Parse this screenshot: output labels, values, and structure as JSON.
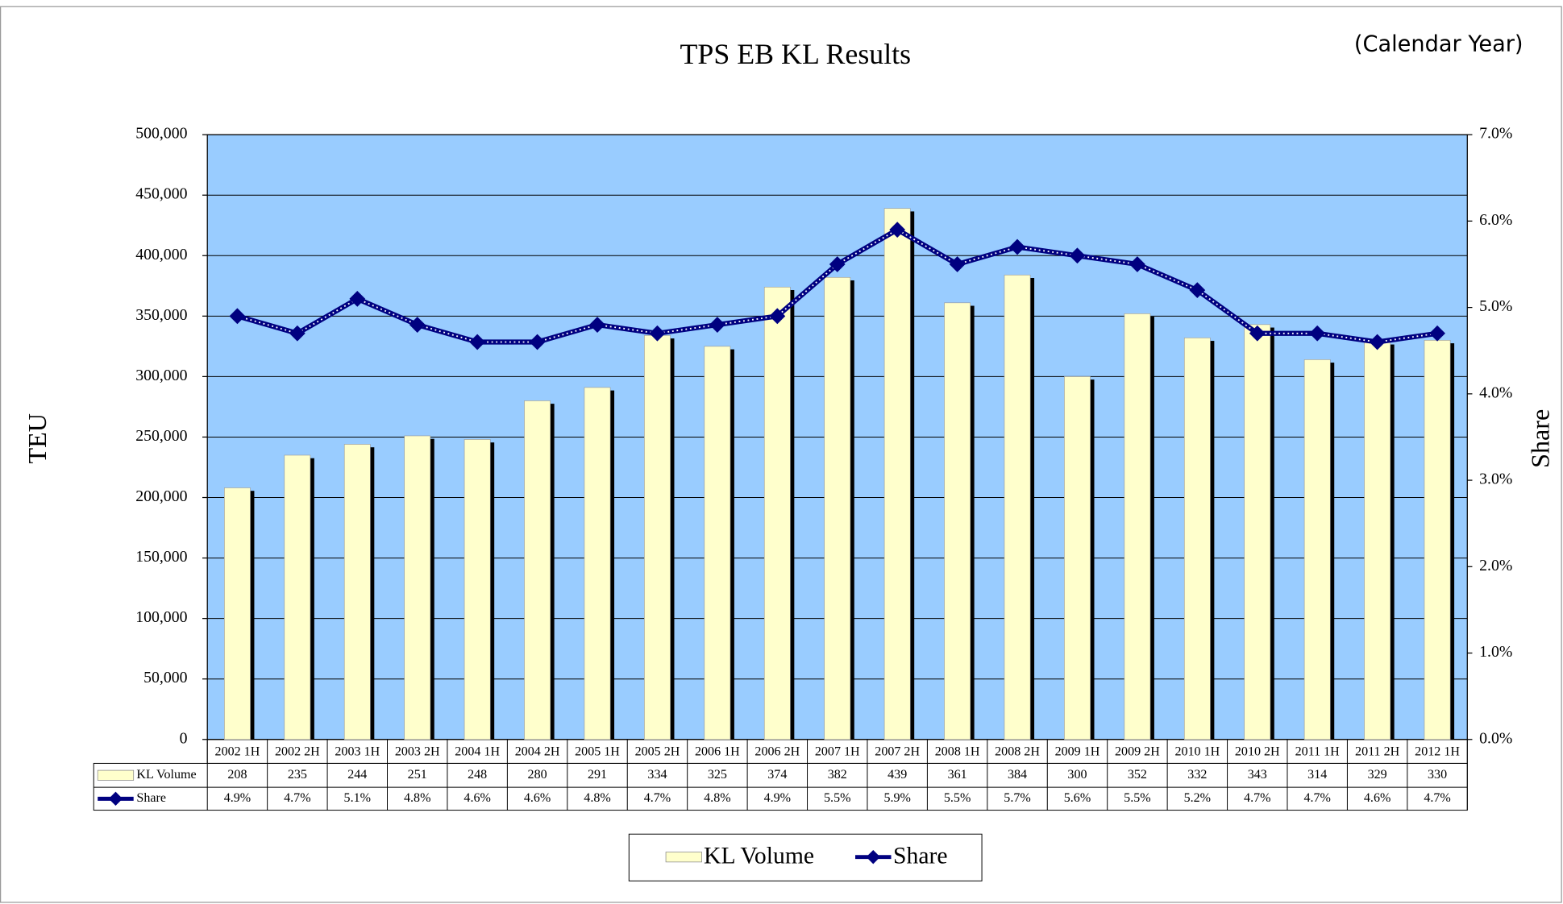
{
  "chart_data": {
    "type": "bar",
    "title": "TPS EB KL Results",
    "annotation": "(Calendar Year)",
    "y_label": "TEU",
    "y2_label": "Share",
    "categories": [
      "2002 1H",
      "2002 2H",
      "2003 1H",
      "2003 2H",
      "2004 1H",
      "2004 2H",
      "2005 1H",
      "2005 2H",
      "2006 1H",
      "2006 2H",
      "2007 1H",
      "2007 2H",
      "2008 1H",
      "2008 2H",
      "2009 1H",
      "2009 2H",
      "2010 1H",
      "2010 2H",
      "2011 1H",
      "2011 2H",
      "2012 1H"
    ],
    "series": [
      {
        "name": "KL Volume",
        "type": "bar",
        "color": "#ffffcc",
        "values": [
          208000,
          235000,
          244000,
          251000,
          248000,
          280000,
          291000,
          334000,
          325000,
          374000,
          382000,
          439000,
          361000,
          384000,
          300000,
          352000,
          332000,
          343000,
          314000,
          329000,
          330000
        ],
        "value_labels": [
          "208",
          "235",
          "244",
          "251",
          "248",
          "280",
          "291",
          "334",
          "325",
          "374",
          "382",
          "439",
          "361",
          "384",
          "300",
          "352",
          "332",
          "343",
          "314",
          "329",
          "330"
        ]
      },
      {
        "name": "Share",
        "type": "line",
        "color": "#000080",
        "axis": "y2",
        "values": [
          4.9,
          4.7,
          5.1,
          4.8,
          4.6,
          4.6,
          4.8,
          4.7,
          4.8,
          4.9,
          5.5,
          5.9,
          5.5,
          5.7,
          5.6,
          5.5,
          5.2,
          4.7,
          4.7,
          4.6,
          4.7
        ],
        "value_labels": [
          "4.9%",
          "4.7%",
          "5.1%",
          "4.8%",
          "4.6%",
          "4.6%",
          "4.8%",
          "4.7%",
          "4.8%",
          "4.9%",
          "5.5%",
          "5.9%",
          "5.5%",
          "5.7%",
          "5.6%",
          "5.5%",
          "5.2%",
          "4.7%",
          "4.7%",
          "4.6%",
          "4.7%"
        ]
      }
    ],
    "ylim": [
      0,
      500000
    ],
    "yticks": [
      0,
      {
        "value": 50000,
        "label": "50,000"
      },
      {
        "value": 100000,
        "label": "100,000"
      },
      {
        "value": 150000,
        "label": "150,000"
      },
      {
        "value": 200000,
        "label": "200,000"
      },
      {
        "value": 250000,
        "label": "250,000"
      },
      {
        "value": 300000,
        "label": "300,000"
      },
      {
        "value": 350000,
        "label": "350,000"
      },
      {
        "value": 400000,
        "label": "400,000"
      },
      {
        "value": 450000,
        "label": "450,000"
      },
      {
        "value": 500000,
        "label": "500,000"
      }
    ],
    "y2lim": [
      0,
      7
    ],
    "y2ticks": [
      {
        "value": 0,
        "label": "0.0%"
      },
      {
        "value": 1,
        "label": "1.0%"
      },
      {
        "value": 2,
        "label": "2.0%"
      },
      {
        "value": 3,
        "label": "3.0%"
      },
      {
        "value": 4,
        "label": "4.0%"
      },
      {
        "value": 5,
        "label": "5.0%"
      },
      {
        "value": 6,
        "label": "6.0%"
      },
      {
        "value": 7,
        "label": "7.0%"
      }
    ],
    "grid": true,
    "plot_background": "#99ccff"
  }
}
